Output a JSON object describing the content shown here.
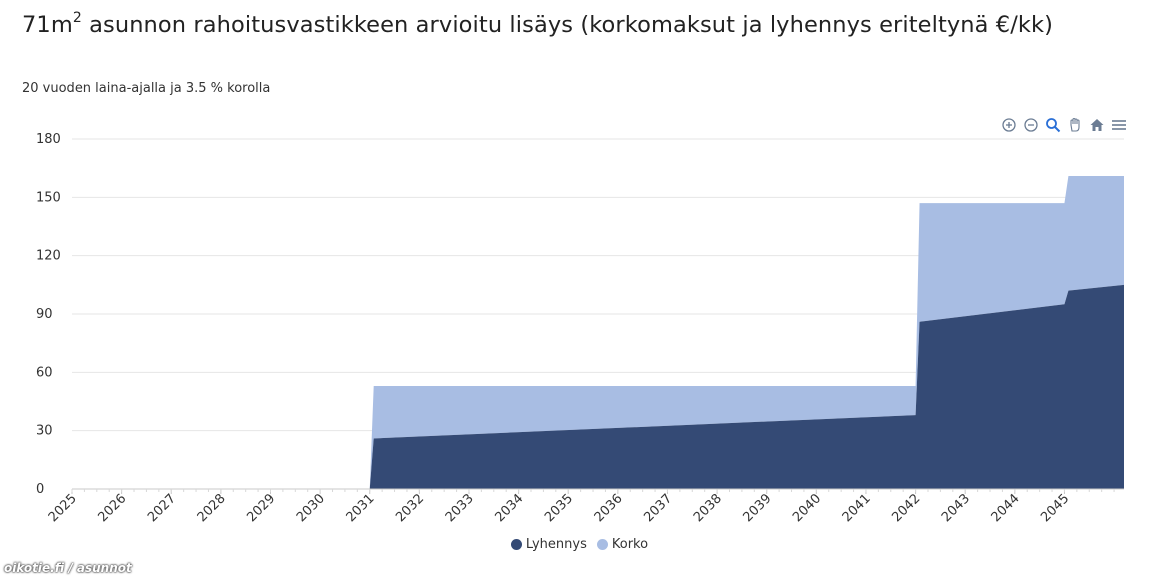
{
  "header": {
    "title_main": "71m",
    "title_sup": "2",
    "title_rest": " asunnon rahoitusvastikkeen arvioitu lisäys (korkomaksut ja lyhennys eriteltynä €/kk)",
    "subtitle": "20 vuoden laina-ajalla ja 3.5 % korolla"
  },
  "toolbar": {
    "icons": [
      "zoom-in-icon",
      "zoom-out-icon",
      "zoom-selection-icon",
      "pan-hand-icon",
      "home-reset-icon",
      "menu-icon"
    ],
    "accent": "#4a6fa5"
  },
  "watermark": "oikotie.fi / asunnot",
  "chart_data": {
    "type": "area",
    "stacked": true,
    "x_tick_labels": [
      "2025",
      "2026",
      "2027",
      "2028",
      "2029",
      "2030",
      "2031",
      "2032",
      "2033",
      "2034",
      "2035",
      "2036",
      "2037",
      "2038",
      "2039",
      "2040",
      "2041",
      "2042",
      "2043",
      "2044",
      "2045"
    ],
    "y_ticks": [
      0,
      30,
      60,
      90,
      120,
      150,
      180
    ],
    "ylim": [
      0,
      180
    ],
    "xlim": [
      2025.0,
      2046.2
    ],
    "grid": true,
    "legend_position": "bottom-center",
    "series": [
      {
        "name": "Lyhennys",
        "color": "#344a75",
        "points": [
          [
            2025.0,
            0
          ],
          [
            2031.0,
            0
          ],
          [
            2031.08,
            26
          ],
          [
            2042.0,
            38
          ],
          [
            2042.08,
            86
          ],
          [
            2045.0,
            95
          ],
          [
            2045.08,
            102
          ],
          [
            2046.2,
            105
          ]
        ]
      },
      {
        "name": "Korko",
        "color": "#a8bde3",
        "points": [
          [
            2025.0,
            0
          ],
          [
            2031.0,
            0
          ],
          [
            2031.08,
            27
          ],
          [
            2042.0,
            15
          ],
          [
            2042.08,
            61
          ],
          [
            2045.0,
            52
          ],
          [
            2045.08,
            59
          ],
          [
            2046.2,
            56
          ]
        ]
      }
    ]
  }
}
